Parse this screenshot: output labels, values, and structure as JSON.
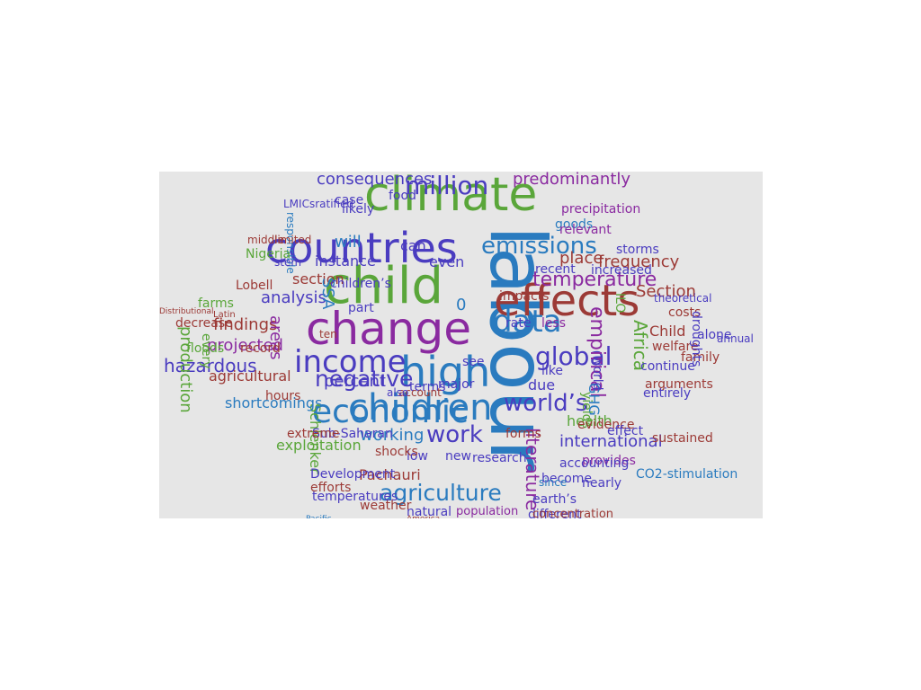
{
  "palette": {
    "background": "#e6e6e6",
    "blue": "#2a7bbf",
    "green": "#5aa63a",
    "purple": "#8a2aa0",
    "red": "#9c3a36",
    "indigo": "#4a3cc0"
  },
  "words": [
    {
      "id": "labour",
      "text": "labour",
      "color": "#2a7bbf"
    },
    {
      "id": "climate",
      "text": "climate",
      "color": "#5aa63a"
    },
    {
      "id": "child",
      "text": "child",
      "color": "#5aa63a"
    },
    {
      "id": "countries",
      "text": "countries",
      "color": "#4a3cc0"
    },
    {
      "id": "change",
      "text": "change",
      "color": "#8a2aa0"
    },
    {
      "id": "effects",
      "text": "effects",
      "color": "#9c3a36"
    },
    {
      "id": "children",
      "text": "children",
      "color": "#2a7bbf"
    },
    {
      "id": "high",
      "text": "high",
      "color": "#2a7bbf"
    },
    {
      "id": "economic",
      "text": "economic",
      "color": "#2a7bbf"
    },
    {
      "id": "income",
      "text": "income",
      "color": "#4a3cc0"
    },
    {
      "id": "agriculture",
      "text": "agriculture",
      "color": "#2a7bbf"
    },
    {
      "id": "million",
      "text": "million",
      "color": "#4a3cc0"
    },
    {
      "id": "emissions",
      "text": "emissions",
      "color": "#2a7bbf"
    },
    {
      "id": "data",
      "text": "data",
      "color": "#2a7bbf"
    },
    {
      "id": "work",
      "text": "work",
      "color": "#4a3cc0"
    },
    {
      "id": "negative",
      "text": "negative",
      "color": "#4a3cc0"
    },
    {
      "id": "global",
      "text": "global",
      "color": "#4a3cc0"
    },
    {
      "id": "worlds",
      "text": "world’s",
      "color": "#4a3cc0"
    },
    {
      "id": "temperature",
      "text": "temperature",
      "color": "#8a2aa0"
    },
    {
      "id": "empirical",
      "text": "empirical",
      "color": "#8a2aa0"
    },
    {
      "id": "literature",
      "text": "literature",
      "color": "#8a2aa0"
    },
    {
      "id": "predominantly",
      "text": "predominantly",
      "color": "#8a2aa0"
    },
    {
      "id": "consequences",
      "text": "consequences",
      "color": "#4a3cc0"
    },
    {
      "id": "hazardous",
      "text": "hazardous",
      "color": "#4a3cc0"
    },
    {
      "id": "percent",
      "text": "percent",
      "color": "#4a3cc0"
    },
    {
      "id": "working",
      "text": "working",
      "color": "#2a7bbf"
    },
    {
      "id": "international",
      "text": "international",
      "color": "#4a3cc0"
    },
    {
      "id": "frequency",
      "text": "frequency",
      "color": "#9c3a36"
    },
    {
      "id": "place",
      "text": "place",
      "color": "#9c3a36"
    },
    {
      "id": "Africa",
      "text": "Africa",
      "color": "#5aa63a"
    },
    {
      "id": "Section",
      "text": "Section",
      "color": "#9c3a36"
    },
    {
      "id": "findings",
      "text": "findings",
      "color": "#9c3a36"
    },
    {
      "id": "projected",
      "text": "projected",
      "color": "#8a2aa0"
    },
    {
      "id": "analysis",
      "text": "analysis",
      "color": "#4a3cc0"
    },
    {
      "id": "instance",
      "text": "instance",
      "color": "#4a3cc0"
    },
    {
      "id": "section",
      "text": "section",
      "color": "#9c3a36"
    },
    {
      "id": "areas",
      "text": "areas",
      "color": "#8a2aa0"
    },
    {
      "id": "SSA",
      "text": "SSA",
      "color": "#2a7bbf"
    },
    {
      "id": "can",
      "text": "can",
      "color": "#4a3cc0"
    },
    {
      "id": "even",
      "text": "even",
      "color": "#4a3cc0"
    },
    {
      "id": "will",
      "text": "will",
      "color": "#2a7bbf"
    },
    {
      "id": "agricultural",
      "text": "agricultural",
      "color": "#9c3a36"
    },
    {
      "id": "health",
      "text": "health",
      "color": "#5aa63a"
    },
    {
      "id": "Schlenker",
      "text": "Schlenker",
      "color": "#5aa63a"
    },
    {
      "id": "exploitation",
      "text": "exploitation",
      "color": "#5aa63a"
    },
    {
      "id": "shortcomings",
      "text": "shortcomings",
      "color": "#2a7bbf"
    },
    {
      "id": "SubSaharan",
      "text": "Sub-Saharan",
      "color": "#4a3cc0"
    },
    {
      "id": "Lobell",
      "text": "Lobell",
      "color": "#9c3a36"
    },
    {
      "id": "record",
      "text": "record",
      "color": "#9c3a36"
    },
    {
      "id": "floods",
      "text": "floods",
      "color": "#5aa63a"
    },
    {
      "id": "decrease",
      "text": "decrease",
      "color": "#9c3a36"
    },
    {
      "id": "production",
      "text": "production",
      "color": "#5aa63a"
    },
    {
      "id": "GHG",
      "text": "GHG",
      "color": "#2a7bbf"
    },
    {
      "id": "ILO",
      "text": "ILO",
      "color": "#5aa63a"
    },
    {
      "id": "world",
      "text": "world",
      "color": "#4a3cc0"
    },
    {
      "id": "yields",
      "text": "yields",
      "color": "#5aa63a"
    },
    {
      "id": "due",
      "text": "due",
      "color": "#4a3cc0"
    },
    {
      "id": "evidence",
      "text": "evidence",
      "color": "#9c3a36"
    },
    {
      "id": "effect",
      "text": "effect",
      "color": "#4a3cc0"
    },
    {
      "id": "provides",
      "text": "provides",
      "color": "#8a2aa0"
    },
    {
      "id": "nearly",
      "text": "nearly",
      "color": "#4a3cc0"
    },
    {
      "id": "CO2stimulation",
      "text": "CO2-stimulation",
      "color": "#2a7bbf"
    },
    {
      "id": "sustained",
      "text": "sustained",
      "color": "#9c3a36"
    },
    {
      "id": "accounting",
      "text": "accounting",
      "color": "#4a3cc0"
    },
    {
      "id": "become",
      "text": "become",
      "color": "#4a3cc0"
    },
    {
      "id": "since",
      "text": "since",
      "color": "#2a7bbf"
    },
    {
      "id": "earths",
      "text": "earth’s",
      "color": "#4a3cc0"
    },
    {
      "id": "different",
      "text": "different",
      "color": "#4a3cc0"
    },
    {
      "id": "population",
      "text": "population",
      "color": "#8a2aa0"
    },
    {
      "id": "concentration",
      "text": "concentration",
      "color": "#9c3a36"
    },
    {
      "id": "natural",
      "text": "natural",
      "color": "#4a3cc0"
    },
    {
      "id": "weather",
      "text": "weather",
      "color": "#9c3a36"
    },
    {
      "id": "temperatures",
      "text": "temperatures",
      "color": "#4a3cc0"
    },
    {
      "id": "Pachauri",
      "text": "Pachauri",
      "color": "#9c3a36"
    },
    {
      "id": "Development",
      "text": "Development",
      "color": "#4a3cc0"
    },
    {
      "id": "efforts",
      "text": "efforts",
      "color": "#9c3a36"
    },
    {
      "id": "research",
      "text": "research",
      "color": "#4a3cc0"
    },
    {
      "id": "new",
      "text": "new",
      "color": "#4a3cc0"
    },
    {
      "id": "low",
      "text": "low",
      "color": "#4a3cc0"
    },
    {
      "id": "shocks",
      "text": "shocks",
      "color": "#9c3a36"
    },
    {
      "id": "extreme",
      "text": "extreme",
      "color": "#9c3a36"
    },
    {
      "id": "hours",
      "text": "hours",
      "color": "#9c3a36"
    },
    {
      "id": "goods",
      "text": "goods",
      "color": "#2a7bbf"
    },
    {
      "id": "relevant",
      "text": "relevant",
      "color": "#8a2aa0"
    },
    {
      "id": "precipitation",
      "text": "precipitation",
      "color": "#8a2aa0"
    },
    {
      "id": "storms",
      "text": "storms",
      "color": "#4a3cc0"
    },
    {
      "id": "increased",
      "text": "increased",
      "color": "#4a3cc0"
    },
    {
      "id": "recent",
      "text": "recent",
      "color": "#4a3cc0"
    },
    {
      "id": "impacts",
      "text": "impacts",
      "color": "#9c3a36"
    },
    {
      "id": "rate",
      "text": "rate",
      "color": "#4a3cc0"
    },
    {
      "id": "less",
      "text": "less",
      "color": "#8a2aa0"
    },
    {
      "id": "see",
      "text": "see",
      "color": "#4a3cc0"
    },
    {
      "id": "major",
      "text": "major",
      "color": "#4a3cc0"
    },
    {
      "id": "terms",
      "text": "terms",
      "color": "#4a3cc0"
    },
    {
      "id": "like",
      "text": "like",
      "color": "#4a3cc0"
    },
    {
      "id": "continue",
      "text": "continue",
      "color": "#4a3cc0"
    },
    {
      "id": "arguments",
      "text": "arguments",
      "color": "#9c3a36"
    },
    {
      "id": "entirely",
      "text": "entirely",
      "color": "#4a3cc0"
    },
    {
      "id": "welfare",
      "text": "welfare",
      "color": "#9c3a36"
    },
    {
      "id": "Child",
      "text": "Child",
      "color": "#9c3a36"
    },
    {
      "id": "family",
      "text": "family",
      "color": "#9c3a36"
    },
    {
      "id": "costs",
      "text": "costs",
      "color": "#9c3a36"
    },
    {
      "id": "theoretical",
      "text": "theoretical",
      "color": "#4a3cc0"
    },
    {
      "id": "alone",
      "text": "alone",
      "color": "#4a3cc0"
    },
    {
      "id": "annual",
      "text": "annual",
      "color": "#4a3cc0"
    },
    {
      "id": "droughts",
      "text": "droughts",
      "color": "#4a3cc0"
    },
    {
      "id": "forms",
      "text": "forms",
      "color": "#9c3a36"
    },
    {
      "id": "account",
      "text": "account",
      "color": "#9c3a36"
    },
    {
      "id": "also",
      "text": "also",
      "color": "#4a3cc0"
    },
    {
      "id": "food",
      "text": "food",
      "color": "#4a3cc0"
    },
    {
      "id": "case",
      "text": "case",
      "color": "#4a3cc0"
    },
    {
      "id": "likely",
      "text": "likely",
      "color": "#4a3cc0"
    },
    {
      "id": "LMICsratified",
      "text": "LMICsratified",
      "color": "#4a3cc0"
    },
    {
      "id": "responsible",
      "text": "responsible",
      "color": "#2a7bbf"
    },
    {
      "id": "limited",
      "text": "limited",
      "color": "#9c3a36"
    },
    {
      "id": "middle",
      "text": "middle",
      "color": "#9c3a36"
    },
    {
      "id": "stem",
      "text": "stem",
      "color": "#4a3cc0"
    },
    {
      "id": "farms",
      "text": "farms",
      "color": "#5aa63a"
    },
    {
      "id": "Nigeria",
      "text": "Nigeria",
      "color": "#5aa63a"
    },
    {
      "id": "childrens",
      "text": "children’s",
      "color": "#4a3cc0"
    },
    {
      "id": "part",
      "text": "part",
      "color": "#4a3cc0"
    },
    {
      "id": "ten",
      "text": "ten",
      "color": "#9c3a36"
    },
    {
      "id": "every",
      "text": "every",
      "color": "#5aa63a"
    },
    {
      "id": "zero",
      "text": "0",
      "color": "#2a7bbf"
    },
    {
      "id": "Latin",
      "text": "Latin",
      "color": "#9c3a36"
    },
    {
      "id": "Distributional",
      "text": "Distributional",
      "color": "#9c3a36"
    },
    {
      "id": "Pacific",
      "text": "Pacific",
      "color": "#2a7bbf"
    },
    {
      "id": "America",
      "text": "America",
      "color": "#9c3a36"
    }
  ]
}
